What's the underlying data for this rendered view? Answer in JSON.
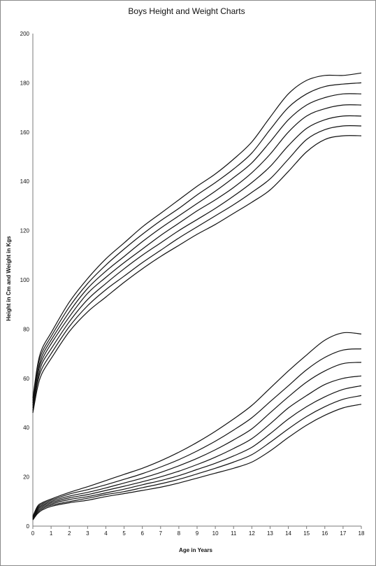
{
  "chart_data": {
    "type": "line",
    "title": "Boys Height and Weight Charts",
    "xlabel": "Age in Years",
    "ylabel": "Height in Cm and Weight in Kgs",
    "xlim": [
      0,
      18
    ],
    "ylim": [
      0,
      200
    ],
    "x_ticks": [
      "0",
      "1",
      "2",
      "3",
      "4",
      "5",
      "6",
      "7",
      "8",
      "9",
      "10",
      "11",
      "12",
      "13",
      "14",
      "15",
      "16",
      "17",
      "18"
    ],
    "y_ticks": [
      "0",
      "20",
      "40",
      "60",
      "80",
      "100",
      "120",
      "140",
      "160",
      "180",
      "200"
    ],
    "grid": false,
    "legend": "none",
    "x": [
      0,
      0.25,
      0.5,
      1,
      2,
      3,
      4,
      5,
      6,
      7,
      8,
      9,
      10,
      11,
      12,
      13,
      14,
      15,
      16,
      17,
      18
    ],
    "series": [
      {
        "values": [
          46,
          56,
          62,
          68,
          79,
          87,
          93,
          99,
          104.5,
          109.5,
          114,
          118.5,
          122.5,
          127,
          131.5,
          136.5,
          144,
          152,
          157,
          158.5,
          158.5
        ]
      },
      {
        "values": [
          47,
          58,
          64,
          70,
          81,
          89.5,
          96,
          101.5,
          107,
          112,
          117,
          121.5,
          126,
          130.5,
          135.5,
          141,
          149,
          157,
          161,
          162.5,
          162.5
        ]
      },
      {
        "values": [
          48,
          59,
          66,
          72,
          83,
          92,
          98.5,
          104.5,
          110,
          115,
          120,
          124.5,
          129,
          134,
          139.5,
          146,
          154.5,
          161.5,
          165,
          166.5,
          166.5
        ]
      },
      {
        "values": [
          49,
          61,
          67.5,
          74,
          85,
          94.5,
          101,
          107,
          112.5,
          118,
          123,
          128,
          132.5,
          137.5,
          143.5,
          151,
          160,
          166.5,
          169.5,
          171,
          171
        ]
      },
      {
        "values": [
          50,
          62,
          69,
          75.5,
          87,
          96.5,
          103.5,
          109.5,
          115.5,
          121,
          126,
          131,
          136,
          141.5,
          147.5,
          156,
          165,
          171,
          174,
          175.5,
          175.5
        ]
      },
      {
        "values": [
          51,
          64,
          70.5,
          77,
          89,
          98.5,
          106,
          112.5,
          118.5,
          124,
          129,
          134.5,
          139.5,
          145,
          151.5,
          161,
          170,
          175.5,
          178.5,
          179.5,
          180
        ]
      },
      {
        "values": [
          52,
          65,
          72,
          78.5,
          91,
          100.5,
          108.5,
          115,
          121.5,
          127,
          132.5,
          138,
          143,
          149,
          156,
          166,
          175.5,
          181,
          183,
          183,
          184
        ]
      },
      {
        "values": [
          2.5,
          5,
          6.5,
          8,
          9.5,
          10.5,
          12,
          13.2,
          14.5,
          15.8,
          17.5,
          19.5,
          21.5,
          23.5,
          26,
          30.5,
          36,
          41,
          45,
          48,
          49.5
        ]
      },
      {
        "values": [
          2.8,
          5.5,
          7,
          8.5,
          10,
          11.3,
          12.8,
          14,
          15.6,
          17.2,
          19,
          21.2,
          23.5,
          26,
          29,
          34,
          39.5,
          44.5,
          48.5,
          51.5,
          53
        ]
      },
      {
        "values": [
          3,
          6,
          7.5,
          9,
          10.8,
          12,
          13.5,
          15,
          16.8,
          18.5,
          20.5,
          23,
          25.5,
          28.5,
          32,
          37.5,
          43.5,
          48.5,
          52.5,
          55.5,
          57
        ]
      },
      {
        "values": [
          3.2,
          6.5,
          8,
          9.5,
          11.5,
          12.8,
          14.5,
          16.2,
          18,
          20,
          22.3,
          25,
          28,
          31.5,
          35.5,
          41.5,
          48,
          53,
          57.5,
          60,
          61
        ]
      },
      {
        "values": [
          3.5,
          7,
          8.5,
          10,
          12.2,
          13.7,
          15.5,
          17.5,
          19.5,
          21.8,
          24.5,
          27.5,
          31,
          35,
          39.5,
          46,
          52.5,
          58.5,
          63,
          66,
          66.5
        ]
      },
      {
        "values": [
          3.8,
          7.5,
          9,
          10.5,
          13,
          14.8,
          16.8,
          19,
          21.3,
          24,
          27,
          30.5,
          34.5,
          39,
          44,
          50.5,
          57,
          63.5,
          68.5,
          71.5,
          72
        ]
      },
      {
        "values": [
          4,
          8,
          9.5,
          11,
          13.7,
          16,
          18.5,
          21,
          23.5,
          26.5,
          30,
          34,
          38.5,
          43.5,
          49,
          56,
          63,
          69.5,
          75.5,
          78.5,
          78
        ]
      }
    ]
  }
}
